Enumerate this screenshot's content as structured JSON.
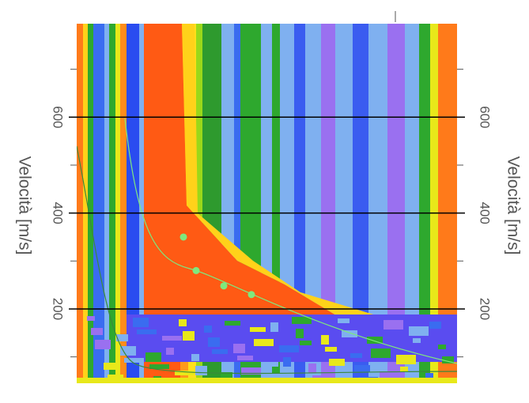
{
  "chart_data": {
    "type": "scatter",
    "ylabel": "Velocità [m/s]",
    "ylim": [
      45,
      795
    ],
    "yticks": [
      200,
      400,
      600
    ],
    "minor_yticks": [
      100,
      300,
      500,
      700
    ],
    "grid": true,
    "color": "#7ee87e",
    "categories": [
      null,
      null,
      null,
      null
    ],
    "values": [
      350,
      280,
      248,
      230
    ]
  }
}
